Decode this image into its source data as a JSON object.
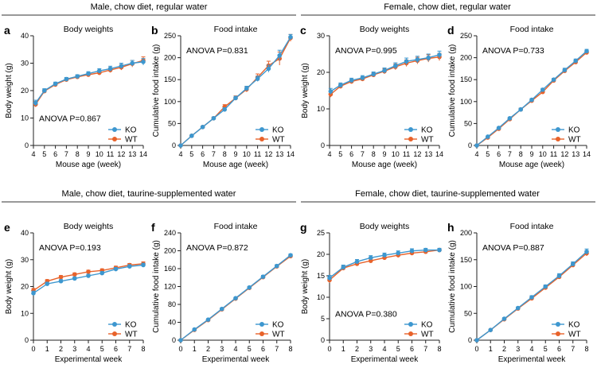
{
  "sections": [
    {
      "title": "Male, chow diet, regular water"
    },
    {
      "title": "Female, chow diet, regular water"
    },
    {
      "title": "Male, chow diet, taurine-supplemented water"
    },
    {
      "title": "Female, chow diet, taurine-supplemented water"
    }
  ],
  "colors": {
    "KO": "#3d97cf",
    "WT": "#e8622a",
    "axis": "#222222",
    "divider": "#333333"
  },
  "chart_data": [
    {
      "type": "line",
      "panel": "a",
      "title": "Body weights",
      "xlabel": "Mouse age (week)",
      "ylabel": "Body weight (g)",
      "xlim": [
        4,
        14
      ],
      "ylim": [
        0,
        40
      ],
      "xticks": [
        4,
        5,
        6,
        7,
        8,
        9,
        10,
        11,
        12,
        13,
        14
      ],
      "yticks": [
        0,
        10,
        20,
        30,
        40
      ],
      "annotation": "ANOVA P=0.867",
      "legend": "bottom-right",
      "grid": false,
      "x": [
        4.2,
        5,
        6,
        7,
        8,
        9,
        10,
        11,
        12,
        13,
        14
      ],
      "series": [
        {
          "name": "KO",
          "values": [
            15.5,
            20,
            22.5,
            24.2,
            25.2,
            26.2,
            27.2,
            28,
            29,
            30,
            30.5
          ],
          "err": [
            1,
            0.7,
            0.6,
            0.6,
            0.6,
            0.7,
            0.8,
            0.9,
            1,
            1,
            1.2
          ]
        },
        {
          "name": "WT",
          "values": [
            15,
            19.8,
            22.2,
            24,
            25,
            25.8,
            26.5,
            27.5,
            28.5,
            29.8,
            31
          ],
          "err": [
            1,
            0.7,
            0.6,
            0.6,
            0.6,
            0.7,
            0.8,
            0.9,
            1,
            1.2,
            1.3
          ]
        }
      ]
    },
    {
      "type": "line",
      "panel": "b",
      "title": "Food intake",
      "xlabel": "Mouse age (week)",
      "ylabel": "Cumulative food intake (g)",
      "xlim": [
        4,
        14
      ],
      "ylim": [
        0,
        250
      ],
      "xticks": [
        4,
        5,
        6,
        7,
        8,
        9,
        10,
        11,
        12,
        13,
        14
      ],
      "yticks": [
        0,
        50,
        100,
        150,
        200,
        250
      ],
      "annotation": "ANOVA P=0.831",
      "legend": "bottom-right",
      "grid": false,
      "x": [
        4,
        5,
        6,
        7,
        8,
        9,
        10,
        11,
        12,
        13,
        14
      ],
      "series": [
        {
          "name": "KO",
          "values": [
            0,
            22,
            42,
            62,
            82,
            108,
            130,
            152,
            175,
            205,
            247
          ],
          "err": [
            0,
            1,
            2,
            3,
            4,
            4,
            5,
            6,
            8,
            12,
            6
          ]
        },
        {
          "name": "WT",
          "values": [
            0,
            22,
            42,
            62,
            88,
            108,
            128,
            155,
            182,
            198,
            245
          ],
          "err": [
            0,
            1,
            2,
            3,
            5,
            5,
            6,
            8,
            10,
            15,
            8
          ]
        }
      ]
    },
    {
      "type": "line",
      "panel": "c",
      "title": "Body weights",
      "xlabel": "Mouse age (week)",
      "ylabel": "Body weight (g)",
      "xlim": [
        4,
        14
      ],
      "ylim": [
        0,
        30
      ],
      "xticks": [
        4,
        5,
        6,
        7,
        8,
        9,
        10,
        11,
        12,
        13,
        14
      ],
      "yticks": [
        0,
        10,
        20,
        30
      ],
      "annotation": "ANOVA P=0.995",
      "legend": "bottom-right",
      "grid": false,
      "x": [
        4.1,
        5,
        6,
        7,
        8,
        9,
        10,
        11,
        12,
        13,
        14
      ],
      "series": [
        {
          "name": "KO",
          "values": [
            14.8,
            16.5,
            17.8,
            18.5,
            19.5,
            20.5,
            21.8,
            23,
            23.5,
            24,
            24.8
          ],
          "err": [
            0.8,
            0.6,
            0.6,
            0.6,
            0.6,
            0.7,
            0.8,
            0.9,
            0.9,
            1,
            1
          ]
        },
        {
          "name": "WT",
          "values": [
            14,
            16.2,
            17.5,
            18.2,
            19.3,
            20.3,
            21.5,
            22.5,
            23.2,
            23.8,
            24.2
          ],
          "err": [
            0.8,
            0.6,
            0.6,
            0.6,
            0.6,
            0.7,
            0.8,
            0.9,
            0.9,
            1,
            1
          ]
        }
      ]
    },
    {
      "type": "line",
      "panel": "d",
      "title": "Food intake",
      "xlabel": "Mouse age (week)",
      "ylabel": "Cumulative food intake (g)",
      "xlim": [
        4,
        14
      ],
      "ylim": [
        0,
        250
      ],
      "xticks": [
        4,
        5,
        6,
        7,
        8,
        9,
        10,
        11,
        12,
        13,
        14
      ],
      "yticks": [
        0,
        50,
        100,
        150,
        200,
        250
      ],
      "annotation": "ANOVA P=0.733",
      "legend": "bottom-right",
      "grid": false,
      "x": [
        4,
        5,
        6,
        7,
        8,
        9,
        10,
        11,
        12,
        13,
        14
      ],
      "series": [
        {
          "name": "KO",
          "values": [
            0,
            20,
            40,
            62,
            82,
            104,
            127,
            150,
            172,
            193,
            215
          ],
          "err": [
            0,
            1,
            2,
            2,
            3,
            3,
            3,
            3,
            4,
            4,
            4
          ]
        },
        {
          "name": "WT",
          "values": [
            0,
            18,
            38,
            60,
            82,
            102,
            122,
            148,
            170,
            190,
            212
          ],
          "err": [
            0,
            1,
            2,
            2,
            3,
            3,
            3,
            3,
            4,
            4,
            4
          ]
        }
      ]
    },
    {
      "type": "line",
      "panel": "e",
      "title": "Body weights",
      "xlabel": "Experimental week",
      "ylabel": "Body weight (g)",
      "xlim": [
        0,
        8
      ],
      "ylim": [
        0,
        40
      ],
      "xticks": [
        0,
        1,
        2,
        3,
        4,
        5,
        6,
        7,
        8
      ],
      "yticks": [
        0,
        10,
        20,
        30,
        40
      ],
      "annotation": "ANOVA P=0.193",
      "legend": "bottom-right",
      "grid": false,
      "x": [
        0,
        1,
        2,
        3,
        4,
        5,
        6,
        7,
        8
      ],
      "series": [
        {
          "name": "KO",
          "values": [
            17.5,
            21,
            22,
            23,
            24,
            25,
            26.5,
            27.5,
            28
          ],
          "err": [
            0.8,
            0.6,
            0.6,
            0.6,
            0.6,
            0.6,
            0.6,
            0.6,
            0.7
          ]
        },
        {
          "name": "WT",
          "values": [
            18.5,
            22,
            23.5,
            24.5,
            25.5,
            26,
            27,
            28,
            28.5
          ],
          "err": [
            0.8,
            0.6,
            0.6,
            0.6,
            0.6,
            0.6,
            0.6,
            0.6,
            0.7
          ]
        }
      ]
    },
    {
      "type": "line",
      "panel": "f",
      "title": "Food intake",
      "xlabel": "Experimental week",
      "ylabel": "Cumulative food intake (g)",
      "xlim": [
        0,
        8
      ],
      "ylim": [
        0,
        240
      ],
      "xticks": [
        0,
        1,
        2,
        3,
        4,
        5,
        6,
        7,
        8
      ],
      "yticks": [
        0,
        40,
        80,
        120,
        160,
        200,
        240
      ],
      "annotation": "ANOVA P=0.872",
      "legend": "bottom-right",
      "grid": false,
      "x": [
        0,
        1,
        2,
        3,
        4,
        5,
        6,
        7,
        8
      ],
      "series": [
        {
          "name": "KO",
          "values": [
            0,
            24,
            46,
            70,
            94,
            118,
            142,
            166,
            190
          ],
          "err": [
            0,
            1,
            1,
            2,
            2,
            2,
            3,
            3,
            3
          ]
        },
        {
          "name": "WT",
          "values": [
            0,
            23,
            45,
            69,
            93,
            117,
            141,
            165,
            188
          ],
          "err": [
            0,
            1,
            1,
            2,
            2,
            2,
            3,
            3,
            3
          ]
        }
      ]
    },
    {
      "type": "line",
      "panel": "g",
      "title": "Body weights",
      "xlabel": "Experimental week",
      "ylabel": "Body weight (g)",
      "xlim": [
        0,
        8
      ],
      "ylim": [
        0,
        25
      ],
      "xticks": [
        0,
        1,
        2,
        3,
        4,
        5,
        6,
        7,
        8
      ],
      "yticks": [
        0,
        5,
        10,
        15,
        20,
        25
      ],
      "annotation": "ANOVA P=0.380",
      "legend": "bottom-right",
      "grid": false,
      "x": [
        0,
        1,
        2,
        3,
        4,
        5,
        6,
        7,
        8
      ],
      "series": [
        {
          "name": "KO",
          "values": [
            14.5,
            17,
            18.3,
            19.2,
            19.8,
            20.3,
            20.8,
            21,
            21
          ],
          "err": [
            0.6,
            0.5,
            0.5,
            0.5,
            0.5,
            0.5,
            0.5,
            0.4,
            0.4
          ]
        },
        {
          "name": "WT",
          "values": [
            14,
            16.8,
            17.8,
            18.5,
            19.2,
            19.8,
            20.3,
            20.6,
            21
          ],
          "err": [
            0.6,
            0.5,
            0.5,
            0.5,
            0.5,
            0.5,
            0.5,
            0.4,
            0.4
          ]
        }
      ]
    },
    {
      "type": "line",
      "panel": "h",
      "title": "Food intake",
      "xlabel": "Experimental week",
      "ylabel": "Cumulative food intake (g)",
      "xlim": [
        0,
        8
      ],
      "ylim": [
        0,
        200
      ],
      "xticks": [
        0,
        1,
        2,
        3,
        4,
        5,
        6,
        7,
        8
      ],
      "yticks": [
        0,
        50,
        100,
        150,
        200
      ],
      "annotation": "ANOVA P=0.887",
      "legend": "bottom-right",
      "grid": false,
      "x": [
        0,
        1,
        2,
        3,
        4,
        5,
        6,
        7,
        8
      ],
      "series": [
        {
          "name": "KO",
          "values": [
            0,
            19,
            40,
            60,
            80,
            100,
            120,
            142,
            165
          ],
          "err": [
            0,
            1,
            2,
            2,
            3,
            3,
            4,
            4,
            5
          ]
        },
        {
          "name": "WT",
          "values": [
            0,
            19,
            39,
            59,
            78,
            98,
            118,
            140,
            162
          ],
          "err": [
            0,
            1,
            2,
            2,
            3,
            3,
            4,
            4,
            5
          ]
        }
      ]
    }
  ]
}
